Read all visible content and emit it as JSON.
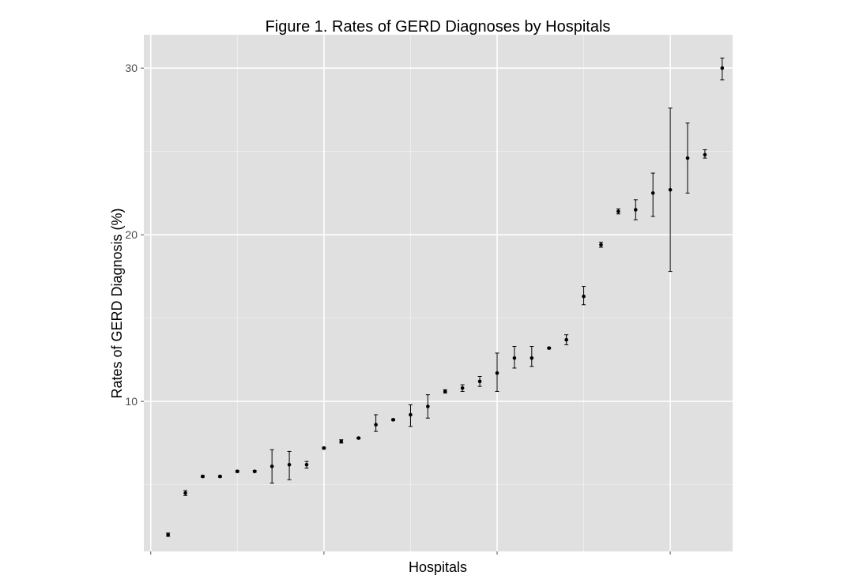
{
  "chart_data": {
    "type": "scatter",
    "title": "Figure 1. Rates of GERD Diagnoses by Hospitals",
    "xlabel": "Hospitals",
    "ylabel": "Rates of GERD Diagnosis (%)",
    "y_ticks": [
      10,
      20,
      30
    ],
    "ylim": [
      1,
      32
    ],
    "xlim": [
      0.6,
      34.6
    ],
    "x_tick_positions": [
      1,
      11,
      21,
      31
    ],
    "grid": true,
    "panel_background": "#e0e0e0",
    "grid_color": "#ffffff",
    "point_color": "#000000",
    "series": [
      {
        "points": [
          {
            "x": 2,
            "y": 2.0,
            "low": 1.9,
            "high": 2.1
          },
          {
            "x": 3,
            "y": 4.5,
            "low": 4.35,
            "high": 4.65
          },
          {
            "x": 4,
            "y": 5.5,
            "low": 5.45,
            "high": 5.55
          },
          {
            "x": 5,
            "y": 5.5,
            "low": 5.45,
            "high": 5.55
          },
          {
            "x": 6,
            "y": 5.8,
            "low": 5.75,
            "high": 5.85
          },
          {
            "x": 7,
            "y": 5.8,
            "low": 5.75,
            "high": 5.85
          },
          {
            "x": 8,
            "y": 6.1,
            "low": 5.1,
            "high": 7.1
          },
          {
            "x": 9,
            "y": 6.2,
            "low": 5.3,
            "high": 7.0
          },
          {
            "x": 10,
            "y": 6.2,
            "low": 6.0,
            "high": 6.4
          },
          {
            "x": 11,
            "y": 7.2,
            "low": 7.15,
            "high": 7.25
          },
          {
            "x": 12,
            "y": 7.6,
            "low": 7.5,
            "high": 7.7
          },
          {
            "x": 13,
            "y": 7.8,
            "low": 7.75,
            "high": 7.85
          },
          {
            "x": 14,
            "y": 8.6,
            "low": 8.2,
            "high": 9.2
          },
          {
            "x": 15,
            "y": 8.9,
            "low": 8.85,
            "high": 8.95
          },
          {
            "x": 16,
            "y": 9.2,
            "low": 8.5,
            "high": 9.8
          },
          {
            "x": 17,
            "y": 9.7,
            "low": 9.0,
            "high": 10.4
          },
          {
            "x": 18,
            "y": 10.6,
            "low": 10.5,
            "high": 10.7
          },
          {
            "x": 19,
            "y": 10.8,
            "low": 10.6,
            "high": 11.0
          },
          {
            "x": 20,
            "y": 11.2,
            "low": 10.9,
            "high": 11.5
          },
          {
            "x": 21,
            "y": 11.7,
            "low": 10.6,
            "high": 12.9
          },
          {
            "x": 22,
            "y": 12.6,
            "low": 12.0,
            "high": 13.3
          },
          {
            "x": 23,
            "y": 12.6,
            "low": 12.1,
            "high": 13.3
          },
          {
            "x": 24,
            "y": 13.2,
            "low": 13.15,
            "high": 13.25
          },
          {
            "x": 25,
            "y": 13.7,
            "low": 13.4,
            "high": 14.0
          },
          {
            "x": 26,
            "y": 16.3,
            "low": 15.8,
            "high": 16.9
          },
          {
            "x": 27,
            "y": 19.4,
            "low": 19.25,
            "high": 19.55
          },
          {
            "x": 28,
            "y": 21.4,
            "low": 21.25,
            "high": 21.55
          },
          {
            "x": 29,
            "y": 21.5,
            "low": 20.9,
            "high": 22.1
          },
          {
            "x": 30,
            "y": 22.5,
            "low": 21.1,
            "high": 23.7
          },
          {
            "x": 31,
            "y": 22.7,
            "low": 17.8,
            "high": 27.6
          },
          {
            "x": 32,
            "y": 24.6,
            "low": 22.5,
            "high": 26.7
          },
          {
            "x": 33,
            "y": 24.8,
            "low": 24.6,
            "high": 25.1
          },
          {
            "x": 34,
            "y": 30.0,
            "low": 29.3,
            "high": 30.6
          }
        ]
      }
    ]
  }
}
